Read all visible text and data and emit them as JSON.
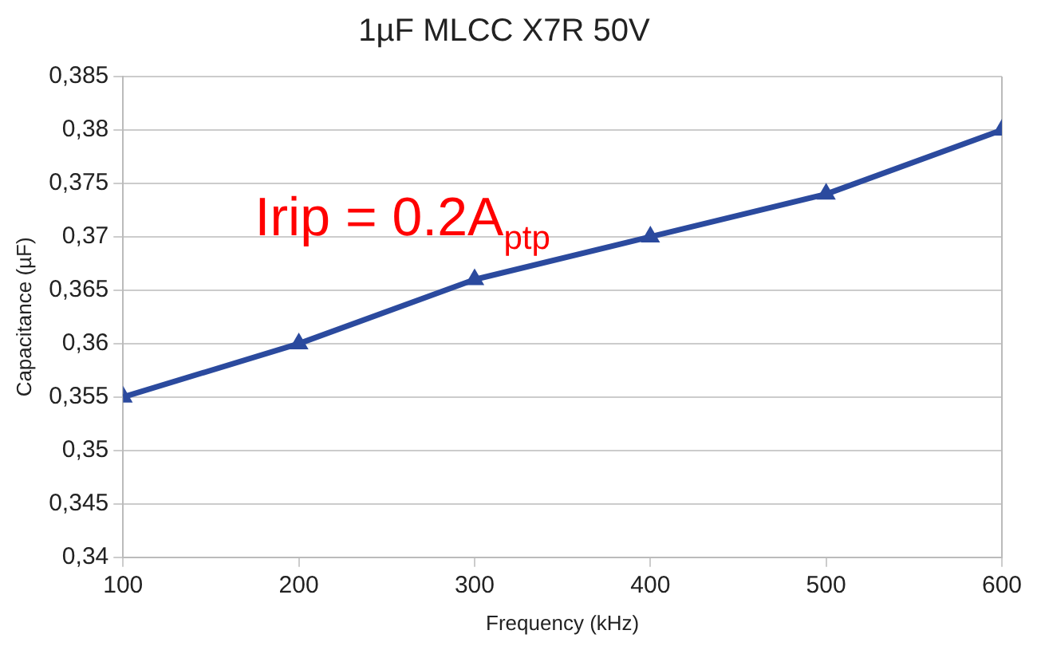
{
  "chart_data": {
    "type": "line",
    "title": "1µF MLCC X7R 50V",
    "xlabel": "Frequency (kHz)",
    "ylabel": "Capacitance (µF)",
    "x": [
      100,
      200,
      300,
      400,
      500,
      600
    ],
    "series": [
      {
        "color": "#2b4a9e",
        "values": [
          0.355,
          0.36,
          0.366,
          0.37,
          0.374,
          0.38
        ]
      }
    ],
    "xlim": [
      100,
      600
    ],
    "xticks": [
      100,
      200,
      300,
      400,
      500,
      600
    ],
    "ylim": [
      0.34,
      0.385
    ],
    "yticks": [
      {
        "value": 0.34,
        "label": "0,34"
      },
      {
        "value": 0.345,
        "label": "0,345"
      },
      {
        "value": 0.35,
        "label": "0,35"
      },
      {
        "value": 0.355,
        "label": "0,355"
      },
      {
        "value": 0.36,
        "label": "0,36"
      },
      {
        "value": 0.365,
        "label": "0,365"
      },
      {
        "value": 0.37,
        "label": "0,37"
      },
      {
        "value": 0.375,
        "label": "0,375"
      },
      {
        "value": 0.38,
        "label": "0,38"
      },
      {
        "value": 0.385,
        "label": "0,385"
      }
    ],
    "grid": "y",
    "marker": "triangle",
    "line_style": "solid",
    "annotations": [
      "Irip = 0.2A$_{ptp}$"
    ]
  }
}
